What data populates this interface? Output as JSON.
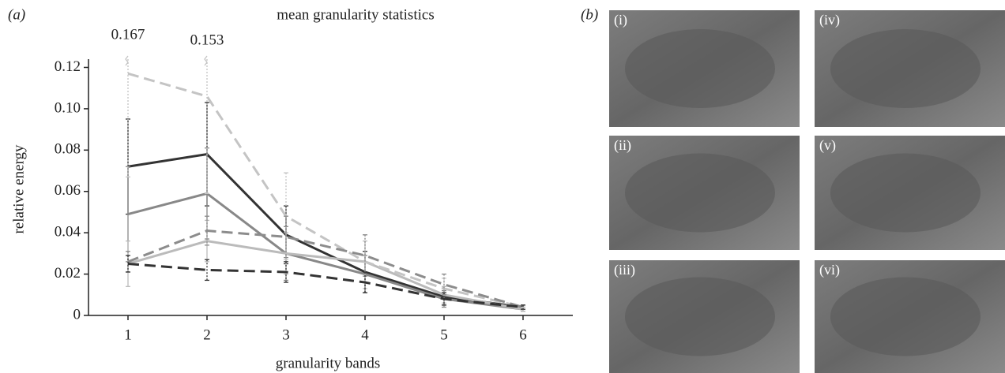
{
  "panel_labels": {
    "a": "(a)",
    "b": "(b)"
  },
  "photos": [
    "(i)",
    "(iv)",
    "(ii)",
    "(v)",
    "(iii)",
    "(vi)"
  ],
  "chart_data": {
    "type": "line",
    "title": "mean granularity statistics",
    "x_label": "granularity bands",
    "y_label": "relative energy",
    "x": [
      1,
      2,
      3,
      4,
      5,
      6
    ],
    "xlim": [
      0.5,
      6.63
    ],
    "xticks": [
      1,
      2,
      3,
      4,
      5,
      6
    ],
    "ylim": [
      0,
      0.124
    ],
    "yticks": [
      0,
      0.02,
      0.04,
      0.06,
      0.08,
      {
        "value": 0.1,
        "label": "0.10"
      },
      0.12
    ],
    "series": [
      {
        "color": "#333333",
        "dashed": false,
        "values": [
          0.072,
          0.078,
          0.039,
          0.021,
          0.009,
          0.004
        ],
        "errors": [
          0.023,
          0.025,
          0.014,
          0.01,
          0.004,
          0.001
        ]
      },
      {
        "color": "#888888",
        "dashed": false,
        "values": [
          0.049,
          0.059,
          0.03,
          0.02,
          0.008,
          0.003
        ],
        "errors": [
          0.023,
          0.022,
          0.013,
          0.009,
          0.004,
          0.001
        ]
      },
      {
        "color": "#bbbbbb",
        "dashed": false,
        "values": [
          0.025,
          0.036,
          0.03,
          0.026,
          0.01,
          0.003
        ],
        "errors": [
          0.011,
          0.01,
          0.01,
          0.01,
          0.004,
          0.001
        ]
      },
      {
        "color": "#c4c4c4",
        "dashed": true,
        "values": [
          0.117,
          0.106,
          0.048,
          0.026,
          0.013,
          0.004
        ],
        "errors": [
          0.05,
          0.047,
          0.021,
          0.013,
          0.005,
          0.001
        ]
      },
      {
        "color": "#8c8c8c",
        "dashed": true,
        "values": [
          0.026,
          0.041,
          0.038,
          0.029,
          0.015,
          0.004
        ],
        "errors": [
          0.005,
          0.007,
          0.01,
          0.01,
          0.005,
          0.001
        ]
      },
      {
        "color": "#333333",
        "dashed": true,
        "values": [
          0.025,
          0.022,
          0.021,
          0.016,
          0.008,
          0.004
        ],
        "errors": [
          0.004,
          0.005,
          0.005,
          0.005,
          0.003,
          0.001
        ]
      }
    ],
    "annotations": [
      {
        "x": 1,
        "label": "0.167"
      },
      {
        "x": 2,
        "label": "0.153"
      }
    ]
  }
}
